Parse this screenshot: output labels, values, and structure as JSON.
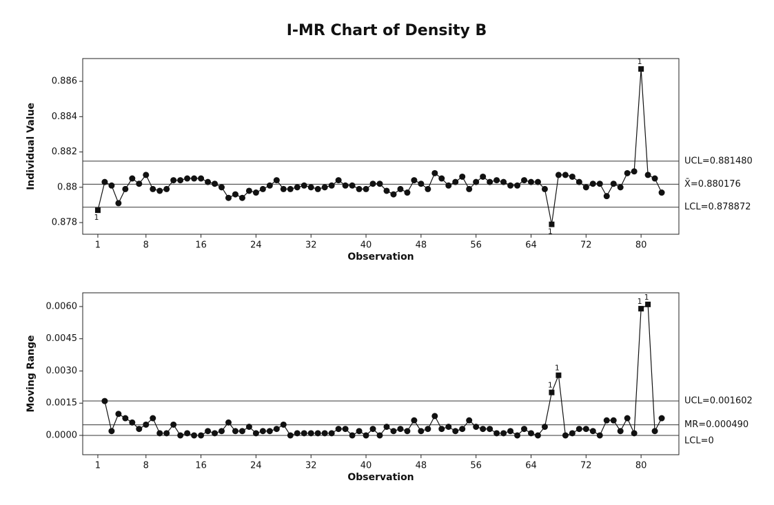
{
  "chart_data": [
    {
      "type": "line",
      "title": "I-MR Chart of Density B",
      "ylabel": "Individual Value",
      "xlabel": "Observation",
      "x": [
        1,
        2,
        3,
        4,
        5,
        6,
        7,
        8,
        9,
        10,
        11,
        12,
        13,
        14,
        15,
        16,
        17,
        18,
        19,
        20,
        21,
        22,
        23,
        24,
        25,
        26,
        27,
        28,
        29,
        30,
        31,
        32,
        33,
        34,
        35,
        36,
        37,
        38,
        39,
        40,
        41,
        42,
        43,
        44,
        45,
        46,
        47,
        48,
        49,
        50,
        51,
        52,
        53,
        54,
        55,
        56,
        57,
        58,
        59,
        60,
        61,
        62,
        63,
        64,
        65,
        66,
        67,
        68,
        69,
        70,
        71,
        72,
        73,
        74,
        75,
        76,
        77,
        78,
        79,
        80,
        81,
        82,
        83
      ],
      "series": [
        {
          "name": "Individual Value",
          "color": "#111111",
          "values": [
            0.8787,
            0.8803,
            0.8801,
            0.8791,
            0.8799,
            0.8805,
            0.8802,
            0.8807,
            0.8799,
            0.8798,
            0.8799,
            0.8804,
            0.8804,
            0.8805,
            0.8805,
            0.8805,
            0.8803,
            0.8802,
            0.88,
            0.8794,
            0.8796,
            0.8794,
            0.8798,
            0.8797,
            0.8799,
            0.8801,
            0.8804,
            0.8799,
            0.8799,
            0.88,
            0.8801,
            0.88,
            0.8799,
            0.88,
            0.8801,
            0.8804,
            0.8801,
            0.8801,
            0.8799,
            0.8799,
            0.8802,
            0.8802,
            0.8798,
            0.8796,
            0.8799,
            0.8797,
            0.8804,
            0.8802,
            0.8799,
            0.8808,
            0.8805,
            0.8801,
            0.8803,
            0.8806,
            0.8799,
            0.8803,
            0.8806,
            0.8803,
            0.8804,
            0.8803,
            0.8801,
            0.8801,
            0.8804,
            0.8803,
            0.8803,
            0.8799,
            0.8779,
            0.8807,
            0.8807,
            0.8806,
            0.8803,
            0.88,
            0.8802,
            0.8802,
            0.8795,
            0.8802,
            0.88,
            0.8808,
            0.8809,
            0.8867,
            0.8807,
            0.8805,
            0.8797
          ],
          "point_labels": [
            "1",
            null,
            null,
            null,
            null,
            null,
            null,
            null,
            null,
            null,
            null,
            null,
            null,
            null,
            null,
            null,
            null,
            null,
            null,
            null,
            null,
            null,
            null,
            null,
            null,
            null,
            null,
            null,
            null,
            null,
            null,
            null,
            null,
            null,
            null,
            null,
            null,
            null,
            null,
            null,
            null,
            null,
            null,
            null,
            null,
            null,
            null,
            null,
            null,
            null,
            null,
            null,
            null,
            null,
            null,
            null,
            null,
            null,
            null,
            null,
            null,
            null,
            null,
            null,
            null,
            null,
            "1",
            null,
            null,
            null,
            null,
            null,
            null,
            null,
            null,
            null,
            null,
            null,
            null,
            "1",
            null,
            null,
            null
          ]
        }
      ],
      "control_lines": [
        {
          "value": 0.88148,
          "label": "UCL=0.881480"
        },
        {
          "value": 0.880176,
          "label": "X̄=0.880176"
        },
        {
          "value": 0.878872,
          "label": "LCL=0.878872"
        }
      ],
      "xlim": [
        -1.2,
        85.5
      ],
      "xticks": [
        1,
        8,
        16,
        24,
        32,
        40,
        48,
        56,
        64,
        72,
        80
      ],
      "ylim": [
        0.87734,
        0.88729
      ],
      "yticks": [
        0.878,
        0.88,
        0.882,
        0.884,
        0.886
      ]
    },
    {
      "type": "line",
      "ylabel": "Moving Range",
      "xlabel": "Observation",
      "x": [
        1,
        2,
        3,
        4,
        5,
        6,
        7,
        8,
        9,
        10,
        11,
        12,
        13,
        14,
        15,
        16,
        17,
        18,
        19,
        20,
        21,
        22,
        23,
        24,
        25,
        26,
        27,
        28,
        29,
        30,
        31,
        32,
        33,
        34,
        35,
        36,
        37,
        38,
        39,
        40,
        41,
        42,
        43,
        44,
        45,
        46,
        47,
        48,
        49,
        50,
        51,
        52,
        53,
        54,
        55,
        56,
        57,
        58,
        59,
        60,
        61,
        62,
        63,
        64,
        65,
        66,
        67,
        68,
        69,
        70,
        71,
        72,
        73,
        74,
        75,
        76,
        77,
        78,
        79,
        80,
        81,
        82,
        83
      ],
      "series": [
        {
          "name": "Moving Range",
          "color": "#111111",
          "values": [
            null,
            0.0016,
            0.0002,
            0.001,
            0.0008,
            0.0006,
            0.0003,
            0.0005,
            0.0008,
            0.0001,
            0.0001,
            0.0005,
            0,
            0.0001,
            0,
            0,
            0.0002,
            0.0001,
            0.0002,
            0.0006,
            0.0002,
            0.0002,
            0.0004,
            0.0001,
            0.0002,
            0.0002,
            0.0003,
            0.0005,
            0,
            0.0001,
            0.0001,
            0.0001,
            0.0001,
            0.0001,
            0.0001,
            0.0003,
            0.0003,
            0,
            0.0002,
            0,
            0.0003,
            0,
            0.0004,
            0.0002,
            0.0003,
            0.0002,
            0.0007,
            0.0002,
            0.0003,
            0.0009,
            0.0003,
            0.0004,
            0.0002,
            0.0003,
            0.0007,
            0.0004,
            0.0003,
            0.0003,
            0.0001,
            0.0001,
            0.0002,
            0,
            0.0003,
            0.0001,
            0,
            0.0004,
            0.002,
            0.0028,
            0,
            0.0001,
            0.0003,
            0.0003,
            0.0002,
            0,
            0.0007,
            0.0007,
            0.0002,
            0.0008,
            0.0001,
            0.0059,
            0.0061,
            0.0002,
            0.0008
          ],
          "point_labels": [
            null,
            null,
            null,
            null,
            null,
            null,
            null,
            null,
            null,
            null,
            null,
            null,
            null,
            null,
            null,
            null,
            null,
            null,
            null,
            null,
            null,
            null,
            null,
            null,
            null,
            null,
            null,
            null,
            null,
            null,
            null,
            null,
            null,
            null,
            null,
            null,
            null,
            null,
            null,
            null,
            null,
            null,
            null,
            null,
            null,
            null,
            null,
            null,
            null,
            null,
            null,
            null,
            null,
            null,
            null,
            null,
            null,
            null,
            null,
            null,
            null,
            null,
            null,
            null,
            null,
            null,
            "1",
            "1",
            null,
            null,
            null,
            null,
            null,
            null,
            null,
            null,
            null,
            null,
            null,
            "1",
            "1",
            null,
            null
          ]
        }
      ],
      "control_lines": [
        {
          "value": 0.001602,
          "label": "UCL=0.001602"
        },
        {
          "value": 0.00049,
          "label": "MR=0.000490"
        },
        {
          "value": 0,
          "label": "LCL=0"
        }
      ],
      "xlim": [
        -1.2,
        85.5
      ],
      "xticks": [
        1,
        8,
        16,
        24,
        32,
        40,
        48,
        56,
        64,
        72,
        80
      ],
      "ylim": [
        -0.0009,
        0.00664
      ],
      "yticks": [
        {
          "value": 0,
          "label": "0.0000"
        },
        {
          "value": 0.0015,
          "label": "0.0015"
        },
        {
          "value": 0.003,
          "label": "0.0030"
        },
        {
          "value": 0.0045,
          "label": "0.0045"
        },
        {
          "value": 0.006,
          "label": "0.0060"
        }
      ]
    }
  ]
}
